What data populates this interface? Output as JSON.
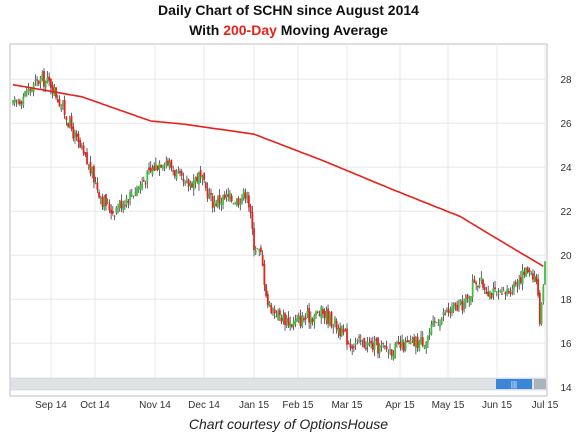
{
  "title_line1": "Daily Chart of SCHN since August 2014",
  "title_line2_pre": "With ",
  "title_line2_highlight": "200-Day",
  "title_line2_post": " Moving Average",
  "caption": "Chart courtesy of OptionsHouse",
  "colors": {
    "up": "#3fbf3f",
    "down": "#e8211b",
    "wick": "#222222",
    "ma": "#e8211b",
    "grid": "#e8e8e8",
    "frame": "#bfbfbf",
    "scroll": "#3a86d8"
  },
  "chart_data": {
    "type": "candlestick",
    "x_ticks": [
      "Sep 14",
      "Oct 14",
      "Nov 14",
      "Dec 14",
      "Jan 15",
      "Feb 15",
      "Mar 15",
      "Apr 15",
      "May 15",
      "Jun 15",
      "Jul 15"
    ],
    "y_ticks": [
      14,
      16,
      18,
      20,
      22,
      24,
      26,
      28
    ],
    "ylim": [
      13.6,
      29.6
    ],
    "grid": true,
    "price_path": [
      [
        0,
        26.8
      ],
      [
        8,
        27.4
      ],
      [
        16,
        28.0
      ],
      [
        22,
        27.8
      ],
      [
        30,
        26.5
      ],
      [
        38,
        25.0
      ],
      [
        46,
        23.7
      ],
      [
        52,
        22.5
      ],
      [
        58,
        22.0
      ],
      [
        66,
        22.6
      ],
      [
        74,
        23.2
      ],
      [
        82,
        24.0
      ],
      [
        88,
        24.4
      ],
      [
        94,
        23.8
      ],
      [
        100,
        23.1
      ],
      [
        108,
        23.6
      ],
      [
        116,
        22.4
      ],
      [
        124,
        22.6
      ],
      [
        130,
        22.5
      ],
      [
        136,
        22.9
      ],
      [
        140,
        20.5
      ],
      [
        144,
        20.0
      ],
      [
        148,
        17.8
      ],
      [
        154,
        17.3
      ],
      [
        162,
        16.9
      ],
      [
        172,
        17.2
      ],
      [
        180,
        17.4
      ],
      [
        188,
        16.8
      ],
      [
        196,
        16.0
      ],
      [
        204,
        16.0
      ],
      [
        212,
        15.8
      ],
      [
        220,
        15.7
      ],
      [
        228,
        15.9
      ],
      [
        234,
        16.0
      ],
      [
        240,
        16.2
      ],
      [
        246,
        17.0
      ],
      [
        252,
        17.4
      ],
      [
        258,
        17.6
      ],
      [
        264,
        17.9
      ],
      [
        268,
        18.9
      ],
      [
        272,
        18.7
      ],
      [
        278,
        18.3
      ],
      [
        284,
        18.1
      ],
      [
        290,
        18.6
      ],
      [
        296,
        19.1
      ],
      [
        300,
        19.4
      ],
      [
        304,
        18.9
      ],
      [
        306,
        17.1
      ],
      [
        309,
        19.7
      ]
    ],
    "moving_average": {
      "name": "200-Day",
      "points": [
        [
          0,
          27.75
        ],
        [
          40,
          27.2
        ],
        [
          80,
          26.1
        ],
        [
          100,
          25.95
        ],
        [
          140,
          25.5
        ],
        [
          180,
          24.3
        ],
        [
          220,
          23.0
        ],
        [
          260,
          21.75
        ],
        [
          280,
          20.8
        ],
        [
          309,
          19.45
        ]
      ]
    }
  }
}
